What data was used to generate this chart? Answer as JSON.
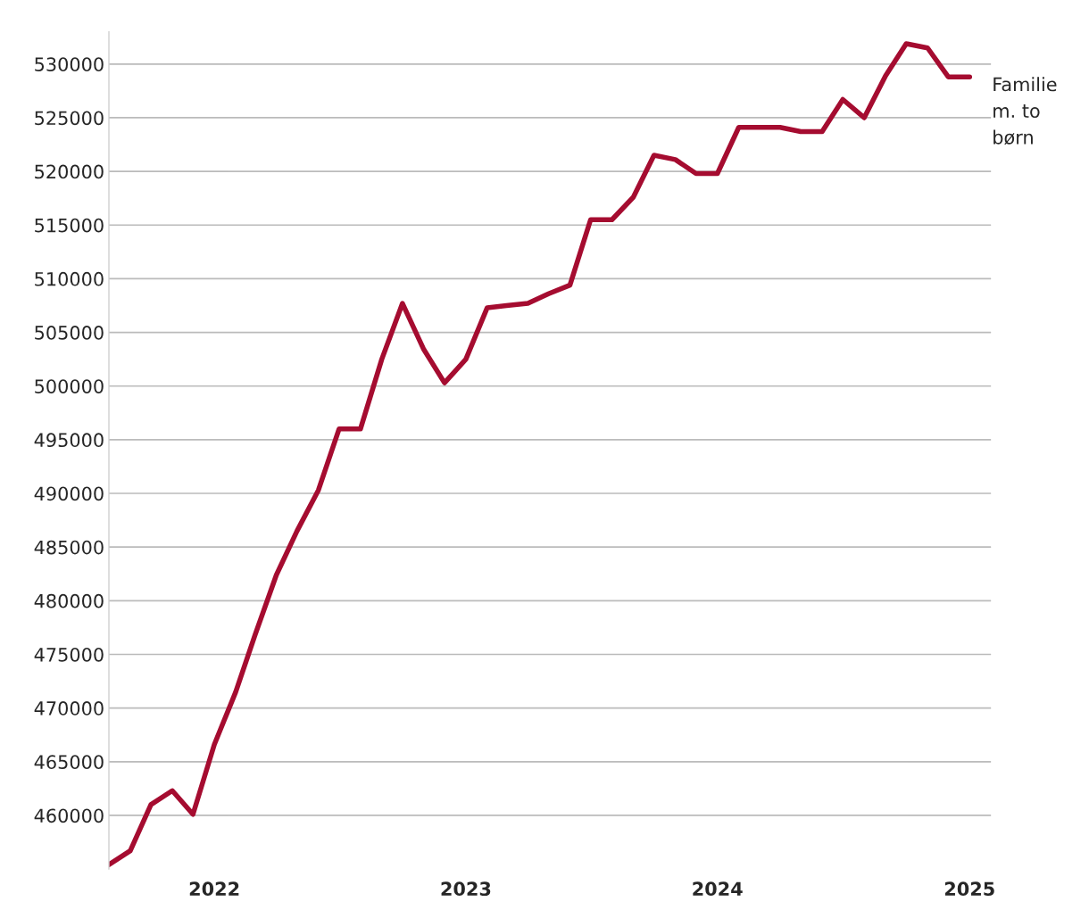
{
  "chart_data": {
    "type": "line",
    "x": [
      "2021-08",
      "2021-09",
      "2021-10",
      "2021-11",
      "2021-12",
      "2022-01",
      "2022-02",
      "2022-03",
      "2022-04",
      "2022-05",
      "2022-06",
      "2022-07",
      "2022-08",
      "2022-09",
      "2022-10",
      "2022-11",
      "2022-12",
      "2023-01",
      "2023-02",
      "2023-03",
      "2023-04",
      "2023-05",
      "2023-06",
      "2023-07",
      "2023-08",
      "2023-09",
      "2023-10",
      "2023-11",
      "2023-12",
      "2024-01",
      "2024-02",
      "2024-03",
      "2024-04",
      "2024-05",
      "2024-06",
      "2024-07",
      "2024-08",
      "2024-09",
      "2024-10",
      "2024-11",
      "2024-12",
      "2025-01"
    ],
    "series": [
      {
        "name": "Familie\nm. to\nbørn",
        "color": "#a50c30",
        "values": [
          455400,
          456700,
          461000,
          462300,
          460100,
          466600,
          471500,
          476800,
          482400,
          486500,
          490300,
          496000,
          496000,
          502500,
          507700,
          503400,
          500300,
          502500,
          507300,
          507500,
          507700,
          508600,
          509400,
          515500,
          515500,
          517600,
          521500,
          521100,
          519800,
          519800,
          524100,
          524100,
          524100,
          523700,
          523700,
          526700,
          525000,
          528900,
          531900,
          531500,
          528800,
          528800
        ]
      }
    ],
    "xlim": [
      "2021-08",
      "2025-02"
    ],
    "xticks": [
      {
        "value": "2022-01",
        "label": "2022"
      },
      {
        "value": "2023-01",
        "label": "2023"
      },
      {
        "value": "2024-01",
        "label": "2024"
      },
      {
        "value": "2025-01",
        "label": "2025"
      }
    ],
    "ylim": [
      455000,
      533000
    ],
    "yticks": [
      460000,
      465000,
      470000,
      475000,
      480000,
      485000,
      490000,
      495000,
      500000,
      505000,
      510000,
      515000,
      520000,
      525000,
      530000
    ],
    "grid": "y",
    "legend": false,
    "marker": "none",
    "line_style": "solid"
  }
}
